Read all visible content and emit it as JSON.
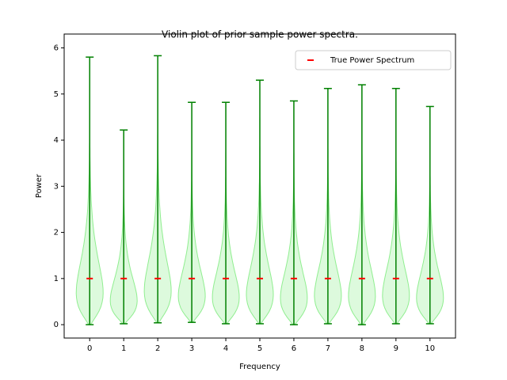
{
  "chart_data": {
    "type": "violin",
    "title": "Violin plot of prior sample power spectra.",
    "xlabel": "Frequency",
    "ylabel": "Power",
    "x": [
      0,
      1,
      2,
      3,
      4,
      5,
      6,
      7,
      8,
      9,
      10
    ],
    "mins": [
      0.0,
      0.02,
      0.04,
      0.05,
      0.02,
      0.02,
      0.0,
      0.02,
      0.0,
      0.02,
      0.02
    ],
    "maxes": [
      5.8,
      4.22,
      5.83,
      4.82,
      4.82,
      5.3,
      4.85,
      5.12,
      5.2,
      5.12,
      4.73
    ],
    "body_color": "#90ee90",
    "line_color": "#008000",
    "series": [
      {
        "name": "True Power Spectrum",
        "color": "#ff0000",
        "values": [
          1,
          1,
          1,
          1,
          1,
          1,
          1,
          1,
          1,
          1,
          1
        ]
      }
    ],
    "xlim": [
      -0.75,
      10.75
    ],
    "ylim": [
      -0.29,
      6.3
    ],
    "xticks": [
      0,
      1,
      2,
      3,
      4,
      5,
      6,
      7,
      8,
      9,
      10
    ],
    "yticks": [
      0,
      1,
      2,
      3,
      4,
      5,
      6
    ],
    "legend": "upper right"
  }
}
